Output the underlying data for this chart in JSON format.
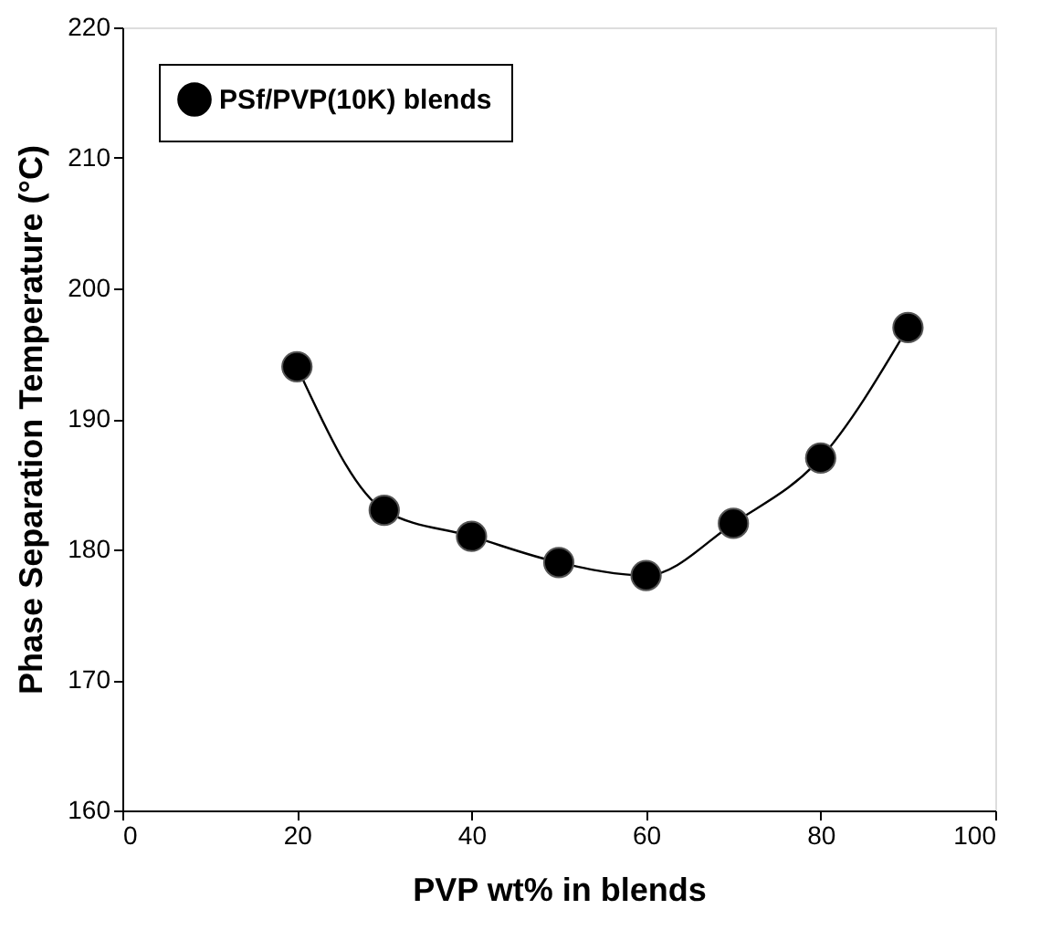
{
  "chart_data": {
    "type": "line",
    "xlabel": "PVP wt%  in blends",
    "ylabel": "Phase Separation Temperature (°C)",
    "x": [
      20,
      30,
      40,
      50,
      60,
      70,
      80,
      90
    ],
    "series": [
      {
        "name": "PSf/PVP(10K) blends",
        "color": "#000000",
        "values": [
          194,
          183,
          181,
          179,
          178,
          182,
          187,
          197
        ]
      }
    ],
    "xlim": [
      0,
      100
    ],
    "xticks": [
      0,
      20,
      40,
      60,
      80,
      100
    ],
    "ylim": [
      160,
      220
    ],
    "yticks": [
      160,
      170,
      180,
      190,
      200,
      210,
      220
    ],
    "grid": false,
    "legend": "top left",
    "marker": "circle",
    "line_style": "solid"
  }
}
